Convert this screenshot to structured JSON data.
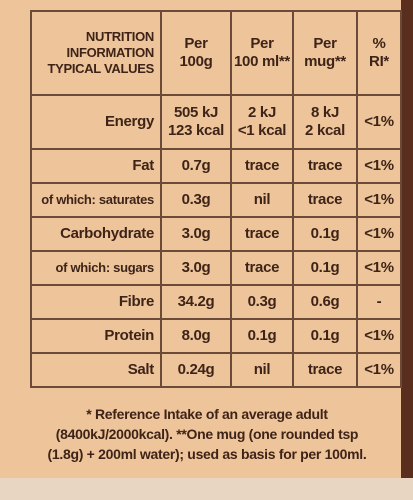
{
  "table": {
    "header": [
      [
        "NUTRITION",
        "INFORMATION",
        "TYPICAL VALUES"
      ],
      [
        "Per",
        "100g"
      ],
      [
        "Per",
        "100 ml**"
      ],
      [
        "Per",
        "mug**"
      ],
      [
        "%",
        "RI*"
      ]
    ],
    "rows": [
      [
        "Energy",
        [
          "505 kJ",
          "123 kcal"
        ],
        [
          "2 kJ",
          "<1 kcal"
        ],
        [
          "8 kJ",
          "2 kcal"
        ],
        "<1%"
      ],
      [
        "Fat",
        "0.7g",
        "trace",
        "trace",
        "<1%"
      ],
      [
        "of which: saturates",
        "0.3g",
        "nil",
        "trace",
        "<1%"
      ],
      [
        "Carbohydrate",
        "3.0g",
        "trace",
        "0.1g",
        "<1%"
      ],
      [
        "of which: sugars",
        "3.0g",
        "trace",
        "0.1g",
        "<1%"
      ],
      [
        "Fibre",
        "34.2g",
        "0.3g",
        "0.6g",
        "-"
      ],
      [
        "Protein",
        "8.0g",
        "0.1g",
        "0.1g",
        "<1%"
      ],
      [
        "Salt",
        "0.24g",
        "nil",
        "trace",
        "<1%"
      ]
    ]
  },
  "footnote": [
    "* Reference Intake of an average adult",
    "(8400kJ/2000kcal). **One mug (one rounded tsp",
    "(1.8g) + 200ml water); used as basis for per 100ml."
  ]
}
